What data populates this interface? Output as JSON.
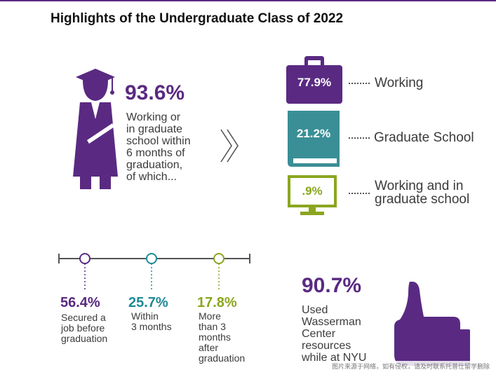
{
  "title": "Highlights of the Undergraduate Class of 2022",
  "colors": {
    "purple": "#5a2a82",
    "teal": "#1f8b96",
    "green": "#8aa61f",
    "teal_book": "#3a8f96"
  },
  "headline": {
    "percent": "93.6%",
    "text_lines": [
      "Working or",
      "in graduate",
      "school within",
      "6 months of",
      "graduation,",
      "of which..."
    ]
  },
  "outcomes": [
    {
      "value": "77.9%",
      "label_lines": [
        "Working"
      ],
      "icon": "briefcase-icon"
    },
    {
      "value": "21.2%",
      "label_lines": [
        "Graduate School"
      ],
      "icon": "book-icon"
    },
    {
      "value": ".9%",
      "label_lines": [
        "Working and in",
        "graduate school"
      ],
      "icon": "monitor-icon"
    }
  ],
  "timeline": [
    {
      "value": "56.4%",
      "desc_lines": [
        "Secured a",
        "job before",
        "graduation"
      ]
    },
    {
      "value": "25.7%",
      "desc_lines": [
        "Within",
        "3 months"
      ]
    },
    {
      "value": "17.8%",
      "desc_lines": [
        "More",
        "than 3",
        "months",
        "after",
        "graduation"
      ]
    }
  ],
  "wasserman": {
    "percent": "90.7%",
    "text_lines": [
      "Used",
      "Wasserman",
      "Center",
      "resources",
      "while at NYU"
    ]
  },
  "watermark": "图片来源于网络，如有侵权，请及时联系托普仕留学删除",
  "chart_data": {
    "type": "table",
    "title": "Highlights of the Undergraduate Class of 2022",
    "rows": [
      {
        "label": "Working or in graduate school within 6 months of graduation",
        "value": 93.6,
        "unit": "%"
      },
      {
        "label": "Working",
        "value": 77.9,
        "unit": "%"
      },
      {
        "label": "Graduate School",
        "value": 21.2,
        "unit": "%"
      },
      {
        "label": "Working and in graduate school",
        "value": 0.9,
        "unit": "%"
      },
      {
        "label": "Secured a job before graduation",
        "value": 56.4,
        "unit": "%"
      },
      {
        "label": "Within 3 months",
        "value": 25.7,
        "unit": "%"
      },
      {
        "label": "More than 3 months after graduation",
        "value": 17.8,
        "unit": "%"
      },
      {
        "label": "Used Wasserman Center resources while at NYU",
        "value": 90.7,
        "unit": "%"
      }
    ]
  }
}
